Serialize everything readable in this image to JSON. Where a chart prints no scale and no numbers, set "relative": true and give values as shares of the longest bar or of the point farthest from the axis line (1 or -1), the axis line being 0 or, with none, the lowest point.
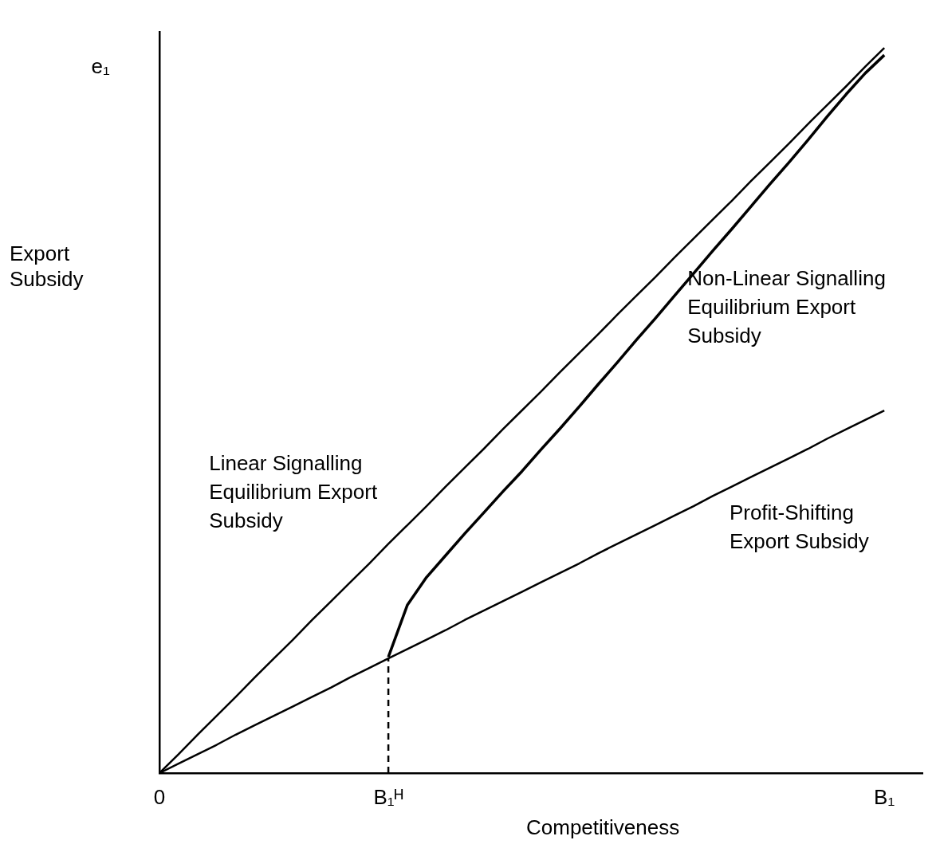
{
  "chart_data": {
    "type": "line",
    "relative": true,
    "xlabel": "Competitiveness",
    "ylabel": "Export\nSubsidy",
    "categories": [
      "0",
      null,
      null,
      null,
      null,
      null,
      null,
      null,
      null,
      null,
      null,
      null,
      "B₁ᴴ",
      null,
      null,
      null,
      null,
      null,
      null,
      null,
      null,
      null,
      null,
      null,
      null,
      null,
      null,
      null,
      null,
      null,
      null,
      null,
      null,
      null,
      null,
      null,
      null,
      null,
      "B₁",
      null,
      null
    ],
    "legend": false,
    "marker": "none",
    "series": [
      {
        "color": "#000000",
        "values": [
          0,
          0.026,
          0.053,
          0.079,
          0.105,
          0.132,
          0.158,
          0.184,
          0.211,
          0.237,
          0.263,
          0.289,
          0.316,
          0.342,
          0.368,
          0.395,
          0.421,
          0.447,
          0.474,
          0.5,
          0.526,
          0.553,
          0.579,
          0.605,
          0.632,
          0.658,
          0.684,
          0.711,
          0.737,
          0.763,
          0.789,
          0.816,
          0.842,
          0.868,
          0.895,
          0.921,
          0.947,
          0.974,
          1,
          null,
          null
        ]
      },
      {
        "color": "#000000",
        "values": [
          null,
          null,
          null,
          null,
          null,
          null,
          null,
          null,
          null,
          null,
          null,
          null,
          0.16,
          0.232,
          0.27,
          0.3,
          0.33,
          0.359,
          0.388,
          0.416,
          0.446,
          0.475,
          0.505,
          0.536,
          0.566,
          0.597,
          0.627,
          0.658,
          0.689,
          0.72,
          0.75,
          0.781,
          0.812,
          0.842,
          0.873,
          0.905,
          0.936,
          0.965,
          0.99,
          null,
          null
        ]
      },
      {
        "color": "#000000",
        "values": [
          0,
          0.013,
          0.026,
          0.039,
          0.053,
          0.066,
          0.079,
          0.092,
          0.105,
          0.118,
          0.132,
          0.145,
          0.158,
          0.171,
          0.184,
          0.197,
          0.211,
          0.224,
          0.237,
          0.25,
          0.263,
          0.276,
          0.289,
          0.303,
          0.316,
          0.329,
          0.342,
          0.355,
          0.368,
          0.382,
          0.395,
          0.408,
          0.421,
          0.434,
          0.447,
          0.461,
          0.474,
          0.487,
          0.5,
          null,
          null
        ]
      }
    ],
    "ref_lines": [
      {
        "axis": "x",
        "value": "B₁ᴴ",
        "color": "#000000",
        "line_style": "dashed"
      }
    ],
    "annotations": [
      "Linear Signalling\nEquilibrium Export\nSubsidy",
      "Non-Linear Signalling\nEquilibrium Export\nSubsidy",
      "Profit-Shifting\nExport Subsidy",
      "e₁"
    ]
  }
}
